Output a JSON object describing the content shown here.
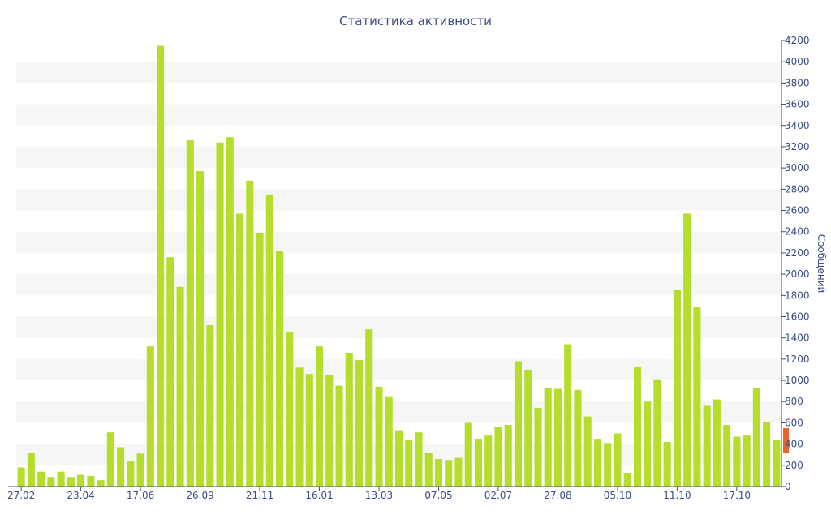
{
  "chart_data": {
    "type": "bar",
    "title": "Статистика активности",
    "ylabel": "Сообщений",
    "xlabel": "",
    "ylim": [
      0,
      4200
    ],
    "y_ticks": [
      0,
      200,
      400,
      600,
      800,
      1000,
      1200,
      1400,
      1600,
      1800,
      2000,
      2200,
      2400,
      2600,
      2800,
      3000,
      3200,
      3400,
      3600,
      3800,
      4000,
      4200
    ],
    "y_axis_position": "right",
    "grid": "alternating-bands",
    "x_tick_labels": [
      {
        "index": 0,
        "label": "27.02"
      },
      {
        "index": 6,
        "label": "23.04"
      },
      {
        "index": 12,
        "label": "17.06"
      },
      {
        "index": 18,
        "label": "26.09"
      },
      {
        "index": 24,
        "label": "21.11"
      },
      {
        "index": 30,
        "label": "16.01"
      },
      {
        "index": 36,
        "label": "13.03"
      },
      {
        "index": 42,
        "label": "07.05"
      },
      {
        "index": 48,
        "label": "02.07"
      },
      {
        "index": 54,
        "label": "27.08"
      },
      {
        "index": 60,
        "label": "05.10"
      },
      {
        "index": 66,
        "label": "11.10"
      },
      {
        "index": 72,
        "label": "17.10"
      }
    ],
    "series": [
      {
        "color": "#b5dd2c",
        "values": [
          180,
          320,
          140,
          90,
          140,
          90,
          110,
          100,
          60,
          510,
          370,
          240,
          310,
          1320,
          4150,
          2160,
          1880,
          3260,
          2970,
          1520,
          3240,
          3290,
          2570,
          2880,
          2390,
          2750,
          2220,
          1450,
          1120,
          1060,
          1320,
          1050,
          950,
          1260,
          1190,
          1480,
          940,
          850,
          530,
          440,
          510,
          320,
          260,
          250,
          270,
          600,
          450,
          480,
          560,
          580,
          1180,
          1100,
          740,
          930,
          920,
          1340,
          910,
          660,
          450,
          410,
          500,
          130,
          1130,
          800,
          1010,
          420,
          1850,
          2570,
          1690,
          760,
          820,
          580,
          470,
          480,
          930,
          610,
          440
        ]
      }
    ],
    "highlight": {
      "color": "#e8622c",
      "low": 320,
      "high": 550
    }
  }
}
